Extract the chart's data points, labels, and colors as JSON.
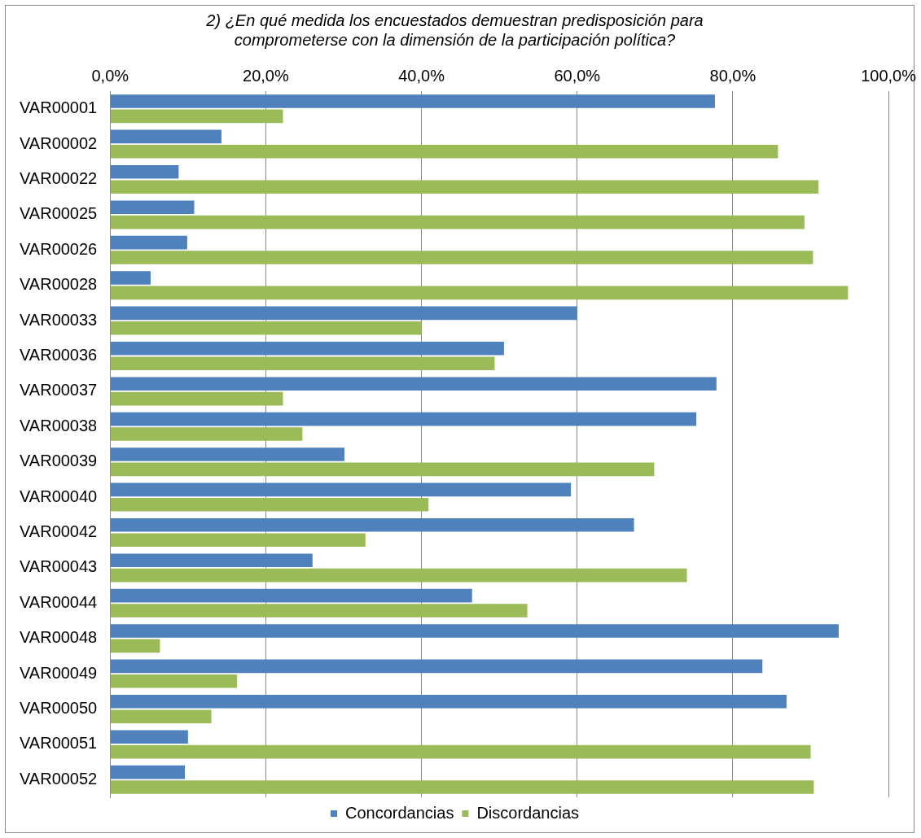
{
  "chart_data": {
    "type": "bar",
    "orientation": "horizontal",
    "title": "2) ¿En qué medida los encuestados demuestran predisposición para\ncomprometerse con la dimensión de la participación política?",
    "categories": [
      "VAR00001",
      "VAR00002",
      "VAR00022",
      "VAR00025",
      "VAR00026",
      "VAR00028",
      "VAR00033",
      "VAR00036",
      "VAR00037",
      "VAR00038",
      "VAR00039",
      "VAR00040",
      "VAR00042",
      "VAR00043",
      "VAR00044",
      "VAR00048",
      "VAR00049",
      "VAR00050",
      "VAR00051",
      "VAR00052"
    ],
    "series": [
      {
        "name": "Concordancias",
        "color": "#4f81bd",
        "values": [
          77.7,
          14.3,
          8.8,
          10.8,
          9.9,
          5.2,
          60.0,
          50.6,
          77.9,
          75.3,
          30.1,
          59.2,
          67.3,
          26.0,
          46.5,
          93.6,
          83.8,
          86.9,
          10.0,
          9.6
        ]
      },
      {
        "name": "Discordancias",
        "color": "#9bbb59",
        "values": [
          22.2,
          85.8,
          91.0,
          89.2,
          90.3,
          94.8,
          40.0,
          49.4,
          22.2,
          24.7,
          69.9,
          40.9,
          32.8,
          74.1,
          53.6,
          6.4,
          16.3,
          13.0,
          90.0,
          90.4
        ]
      }
    ],
    "xlim": [
      0,
      100
    ],
    "xticks": [
      {
        "value": 0,
        "label": "0,0%"
      },
      {
        "value": 20,
        "label": "20,0%"
      },
      {
        "value": 40,
        "label": "40,0%"
      },
      {
        "value": 60,
        "label": "60,0%"
      },
      {
        "value": 80,
        "label": "80,0%"
      },
      {
        "value": 100,
        "label": "100,0%"
      }
    ],
    "grid": "x",
    "legend": "bottom"
  }
}
